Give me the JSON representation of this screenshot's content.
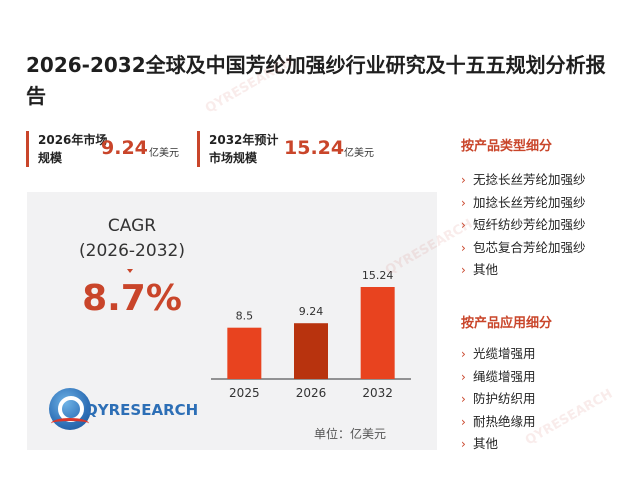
{
  "title": "2026-2032全球及中国芳纶加强纱行业研究及十五五规划分析报告",
  "stats": [
    {
      "label": "2026年市场规模",
      "value": "9.24",
      "unit": "亿美元"
    },
    {
      "label": "2032年预计市场规模",
      "value": "15.24",
      "unit": "亿美元"
    }
  ],
  "cagr": {
    "label_line1": "CAGR",
    "label_line2": "(2026-2032)",
    "value": "8.7%"
  },
  "logo": {
    "text": "QYRESEARCH"
  },
  "unit_note": "单位：亿美元",
  "watermark": "QYRESEARCH",
  "colors": {
    "accent": "#c9452a",
    "bar_light": "#e8431f",
    "bar_dark": "#b8330e",
    "panel_bg": "#f2f2f3"
  },
  "chart_data": {
    "type": "bar",
    "categories": [
      "2025",
      "2026",
      "2032"
    ],
    "values": [
      8.5,
      9.24,
      15.24
    ],
    "data_labels": [
      "8.5",
      "9.24",
      "15.24"
    ],
    "bar_colors": [
      "#e8431f",
      "#b8330e",
      "#e8431f"
    ],
    "ylim": [
      0,
      15.24
    ],
    "title": "",
    "xlabel": "",
    "ylabel": ""
  },
  "sidebar": {
    "type_heading": "按产品类型细分",
    "type_items": [
      "无捻长丝芳纶加强纱",
      "加捻长丝芳纶加强纱",
      "短纤纺纱芳纶加强纱",
      "包芯复合芳纶加强纱",
      "其他"
    ],
    "app_heading": "按产品应用细分",
    "app_items": [
      "光缆增强用",
      "绳缆增强用",
      "防护纺织用",
      "耐热绝缘用",
      "其他"
    ]
  }
}
